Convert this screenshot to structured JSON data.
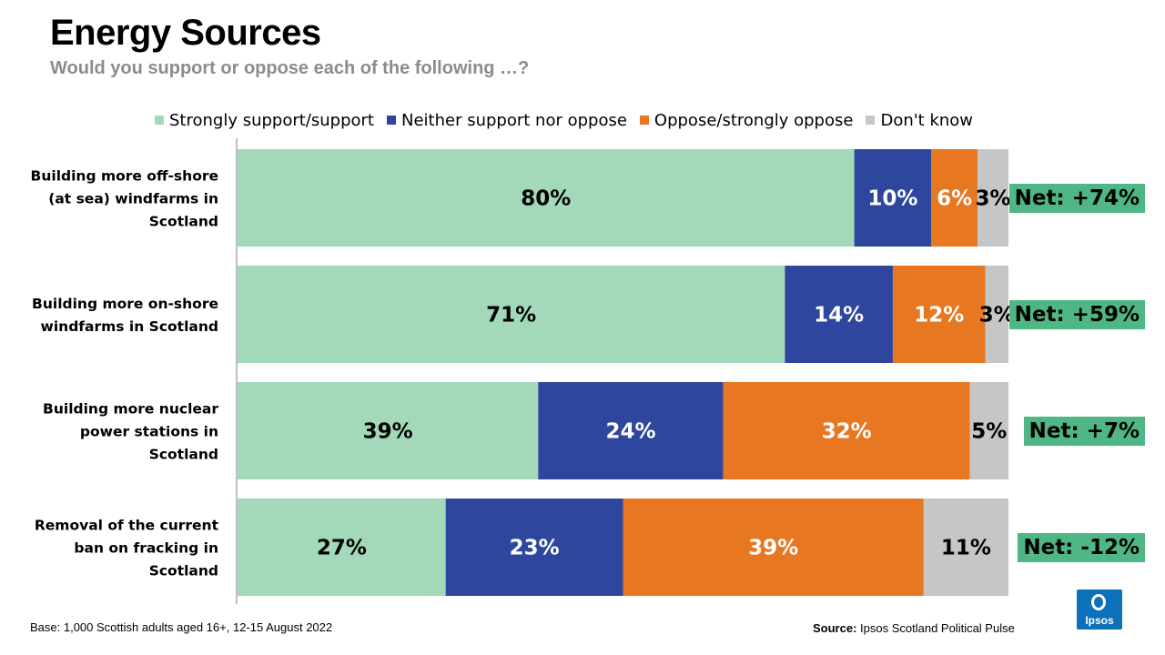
{
  "header": {
    "title": "Energy Sources",
    "subtitle": "Would you support or oppose each of the following …?"
  },
  "legend": [
    {
      "label": "Strongly support/support",
      "color": "#a3d9b8"
    },
    {
      "label": "Neither support nor oppose",
      "color": "#2e469e"
    },
    {
      "label": "Oppose/strongly oppose",
      "color": "#e87722"
    },
    {
      "label": "Don't know",
      "color": "#c6c6c6"
    }
  ],
  "chart_data": {
    "type": "bar",
    "orientation": "horizontal",
    "stacked": true,
    "categories": [
      [
        "Building more off-shore",
        "(at sea) windfarms in",
        "Scotland"
      ],
      [
        "Building more on-shore",
        "windfarms in Scotland"
      ],
      [
        "Building more nuclear",
        "power stations in",
        "Scotland"
      ],
      [
        "Removal of the current",
        "ban on fracking in",
        "Scotland"
      ]
    ],
    "series": [
      {
        "name": "Strongly support/support",
        "color": "#a3d9b8",
        "label_color": "#000000",
        "values": [
          80,
          71,
          39,
          27
        ],
        "labels": [
          "80%",
          "71%",
          "39%",
          "27%"
        ]
      },
      {
        "name": "Neither support nor oppose",
        "color": "#2e469e",
        "label_color": "#ffffff",
        "values": [
          10,
          14,
          24,
          23
        ],
        "labels": [
          "10%",
          "14%",
          "24%",
          "23%"
        ]
      },
      {
        "name": "Oppose/strongly oppose",
        "color": "#e87722",
        "label_color": "#ffffff",
        "values": [
          6,
          12,
          32,
          39
        ],
        "labels": [
          "6%",
          "12%",
          "32%",
          "39%"
        ]
      },
      {
        "name": "Don't know",
        "color": "#c6c6c6",
        "label_color": "#000000",
        "values": [
          3,
          3,
          5,
          11
        ],
        "labels": [
          "3%",
          "3%",
          "5%",
          "11%"
        ]
      }
    ],
    "xlim": [
      0,
      100
    ],
    "net": [
      "Net: +74%",
      "Net: +59%",
      "Net: +7%",
      "Net: -12%"
    ],
    "net_color": "#4fb785"
  },
  "footer": {
    "base": "Base: 1,000 Scottish adults aged 16+, 12-15 August 2022",
    "source_label": "Source:",
    "source_text": " Ipsos Scotland Political Pulse",
    "logo_text": "Ipsos"
  }
}
